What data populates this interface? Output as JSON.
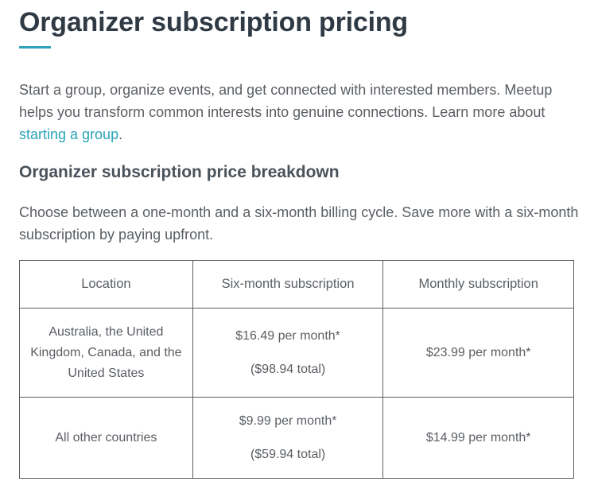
{
  "title": "Organizer subscription pricing",
  "intro": {
    "text": "Start a group, organize events, and get connected with interested members. Meetup helps you transform common interests into genuine connections. Learn more about ",
    "link_text": "starting a group",
    "after_link": "."
  },
  "breakdown": {
    "heading": "Organizer subscription price breakdown",
    "description": "Choose between a one-month and a six-month billing cycle. Save more with a six-month subscription by paying upfront."
  },
  "table": {
    "headers": [
      "Location",
      "Six-month subscription",
      "Monthly subscription"
    ],
    "rows": [
      {
        "location": "Australia, the United Kingdom, Canada, and the United States",
        "six_month_price": "$16.49 per month*",
        "six_month_total": "($98.94 total)",
        "monthly_price": "$23.99 per month*"
      },
      {
        "location": "All other countries",
        "six_month_price": "$9.99 per month*",
        "six_month_total": "($59.94 total)",
        "monthly_price": "$14.99 per month*"
      }
    ]
  },
  "colors": {
    "accent": "#2aa3b8",
    "heading": "#2f3a45",
    "body_text": "#5a5e63"
  }
}
